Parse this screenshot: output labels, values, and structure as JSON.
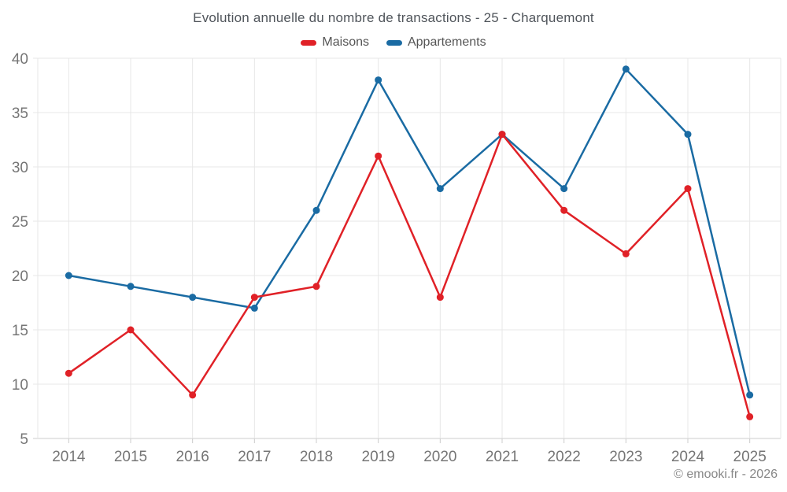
{
  "chart_data": {
    "type": "line",
    "title": "Evolution annuelle du nombre de transactions - 25 - Charquemont",
    "categories": [
      "2014",
      "2015",
      "2016",
      "2017",
      "2018",
      "2019",
      "2020",
      "2021",
      "2022",
      "2023",
      "2024",
      "2025"
    ],
    "series": [
      {
        "name": "Maisons",
        "color": "#e02127",
        "values": [
          11,
          15,
          9,
          18,
          19,
          31,
          18,
          33,
          26,
          22,
          28,
          7
        ]
      },
      {
        "name": "Appartements",
        "color": "#1a6ba3",
        "values": [
          20,
          19,
          18,
          17,
          26,
          38,
          28,
          33,
          28,
          39,
          33,
          9
        ]
      }
    ],
    "xlabel": "",
    "ylabel": "",
    "ylim": [
      5,
      40
    ],
    "y_ticks": [
      5,
      10,
      15,
      20,
      25,
      30,
      35,
      40
    ],
    "grid": true,
    "legend_position": "top",
    "marker": "circle"
  },
  "footer": {
    "attribution": "© emooki.fr - 2026"
  },
  "colors": {
    "background": "#ffffff",
    "grid": "#e7e7e7",
    "axis_line": "#cccccc",
    "axis_label": "#757575",
    "title_text": "#50555b",
    "legend_text": "#555555",
    "footer_text": "#888888"
  }
}
